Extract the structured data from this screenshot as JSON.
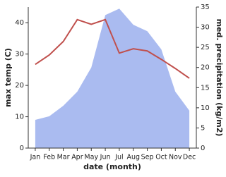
{
  "chart_data": {
    "type": "line-area",
    "x_label": "date (month)",
    "y_label": "max temp (C)",
    "y2_label": "med. precipitation (kg/m2)",
    "categories": [
      "Jan",
      "Feb",
      "Mar",
      "Apr",
      "May",
      "Jun",
      "Jul",
      "Aug",
      "Sep",
      "Oct",
      "Nov",
      "Dec"
    ],
    "series": [
      {
        "name": "max temp",
        "kind": "line",
        "color": "#c0504d",
        "values": [
          26.7,
          29.7,
          34,
          41,
          39.5,
          41,
          30.3,
          31.7,
          31,
          28.3,
          25.4,
          22.3
        ]
      },
      {
        "name": "med. precipitation",
        "kind": "area",
        "axis": "y2",
        "color": "#aabbf0",
        "values": [
          7,
          7.9,
          10.5,
          14,
          20,
          33,
          34.6,
          30.6,
          29,
          24.5,
          14,
          9.3
        ]
      }
    ],
    "ylim": [
      0,
      45
    ],
    "yticks": [
      0,
      10,
      20,
      30,
      40
    ],
    "y2lim": [
      0,
      35
    ],
    "y2ticks": [
      0,
      5,
      10,
      15,
      20,
      25,
      30,
      35
    ]
  }
}
